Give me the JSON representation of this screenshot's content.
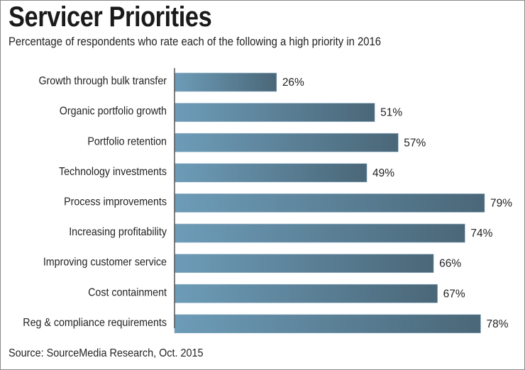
{
  "chart_data": {
    "type": "bar",
    "orientation": "horizontal",
    "title": "Servicer Priorities",
    "subtitle": "Percentage of respondents who rate each of the following a high priority in 2016",
    "source": "Source: SourceMedia Research, Oct. 2015",
    "categories": [
      "Growth through bulk transfer",
      "Organic portfolio growth",
      "Portfolio retention",
      "Technology investments",
      "Process improvements",
      "Increasing profitability",
      "Improving customer service",
      "Cost containment",
      "Reg & compliance requirements"
    ],
    "values": [
      26,
      51,
      57,
      49,
      79,
      74,
      66,
      67,
      78
    ],
    "value_suffix": "%",
    "xlabel": "",
    "ylabel": "",
    "xlim": [
      0,
      79
    ],
    "grid": false,
    "legend": "none",
    "bar_color_start": "#6d9cb8",
    "bar_color_end": "#4a6778"
  }
}
